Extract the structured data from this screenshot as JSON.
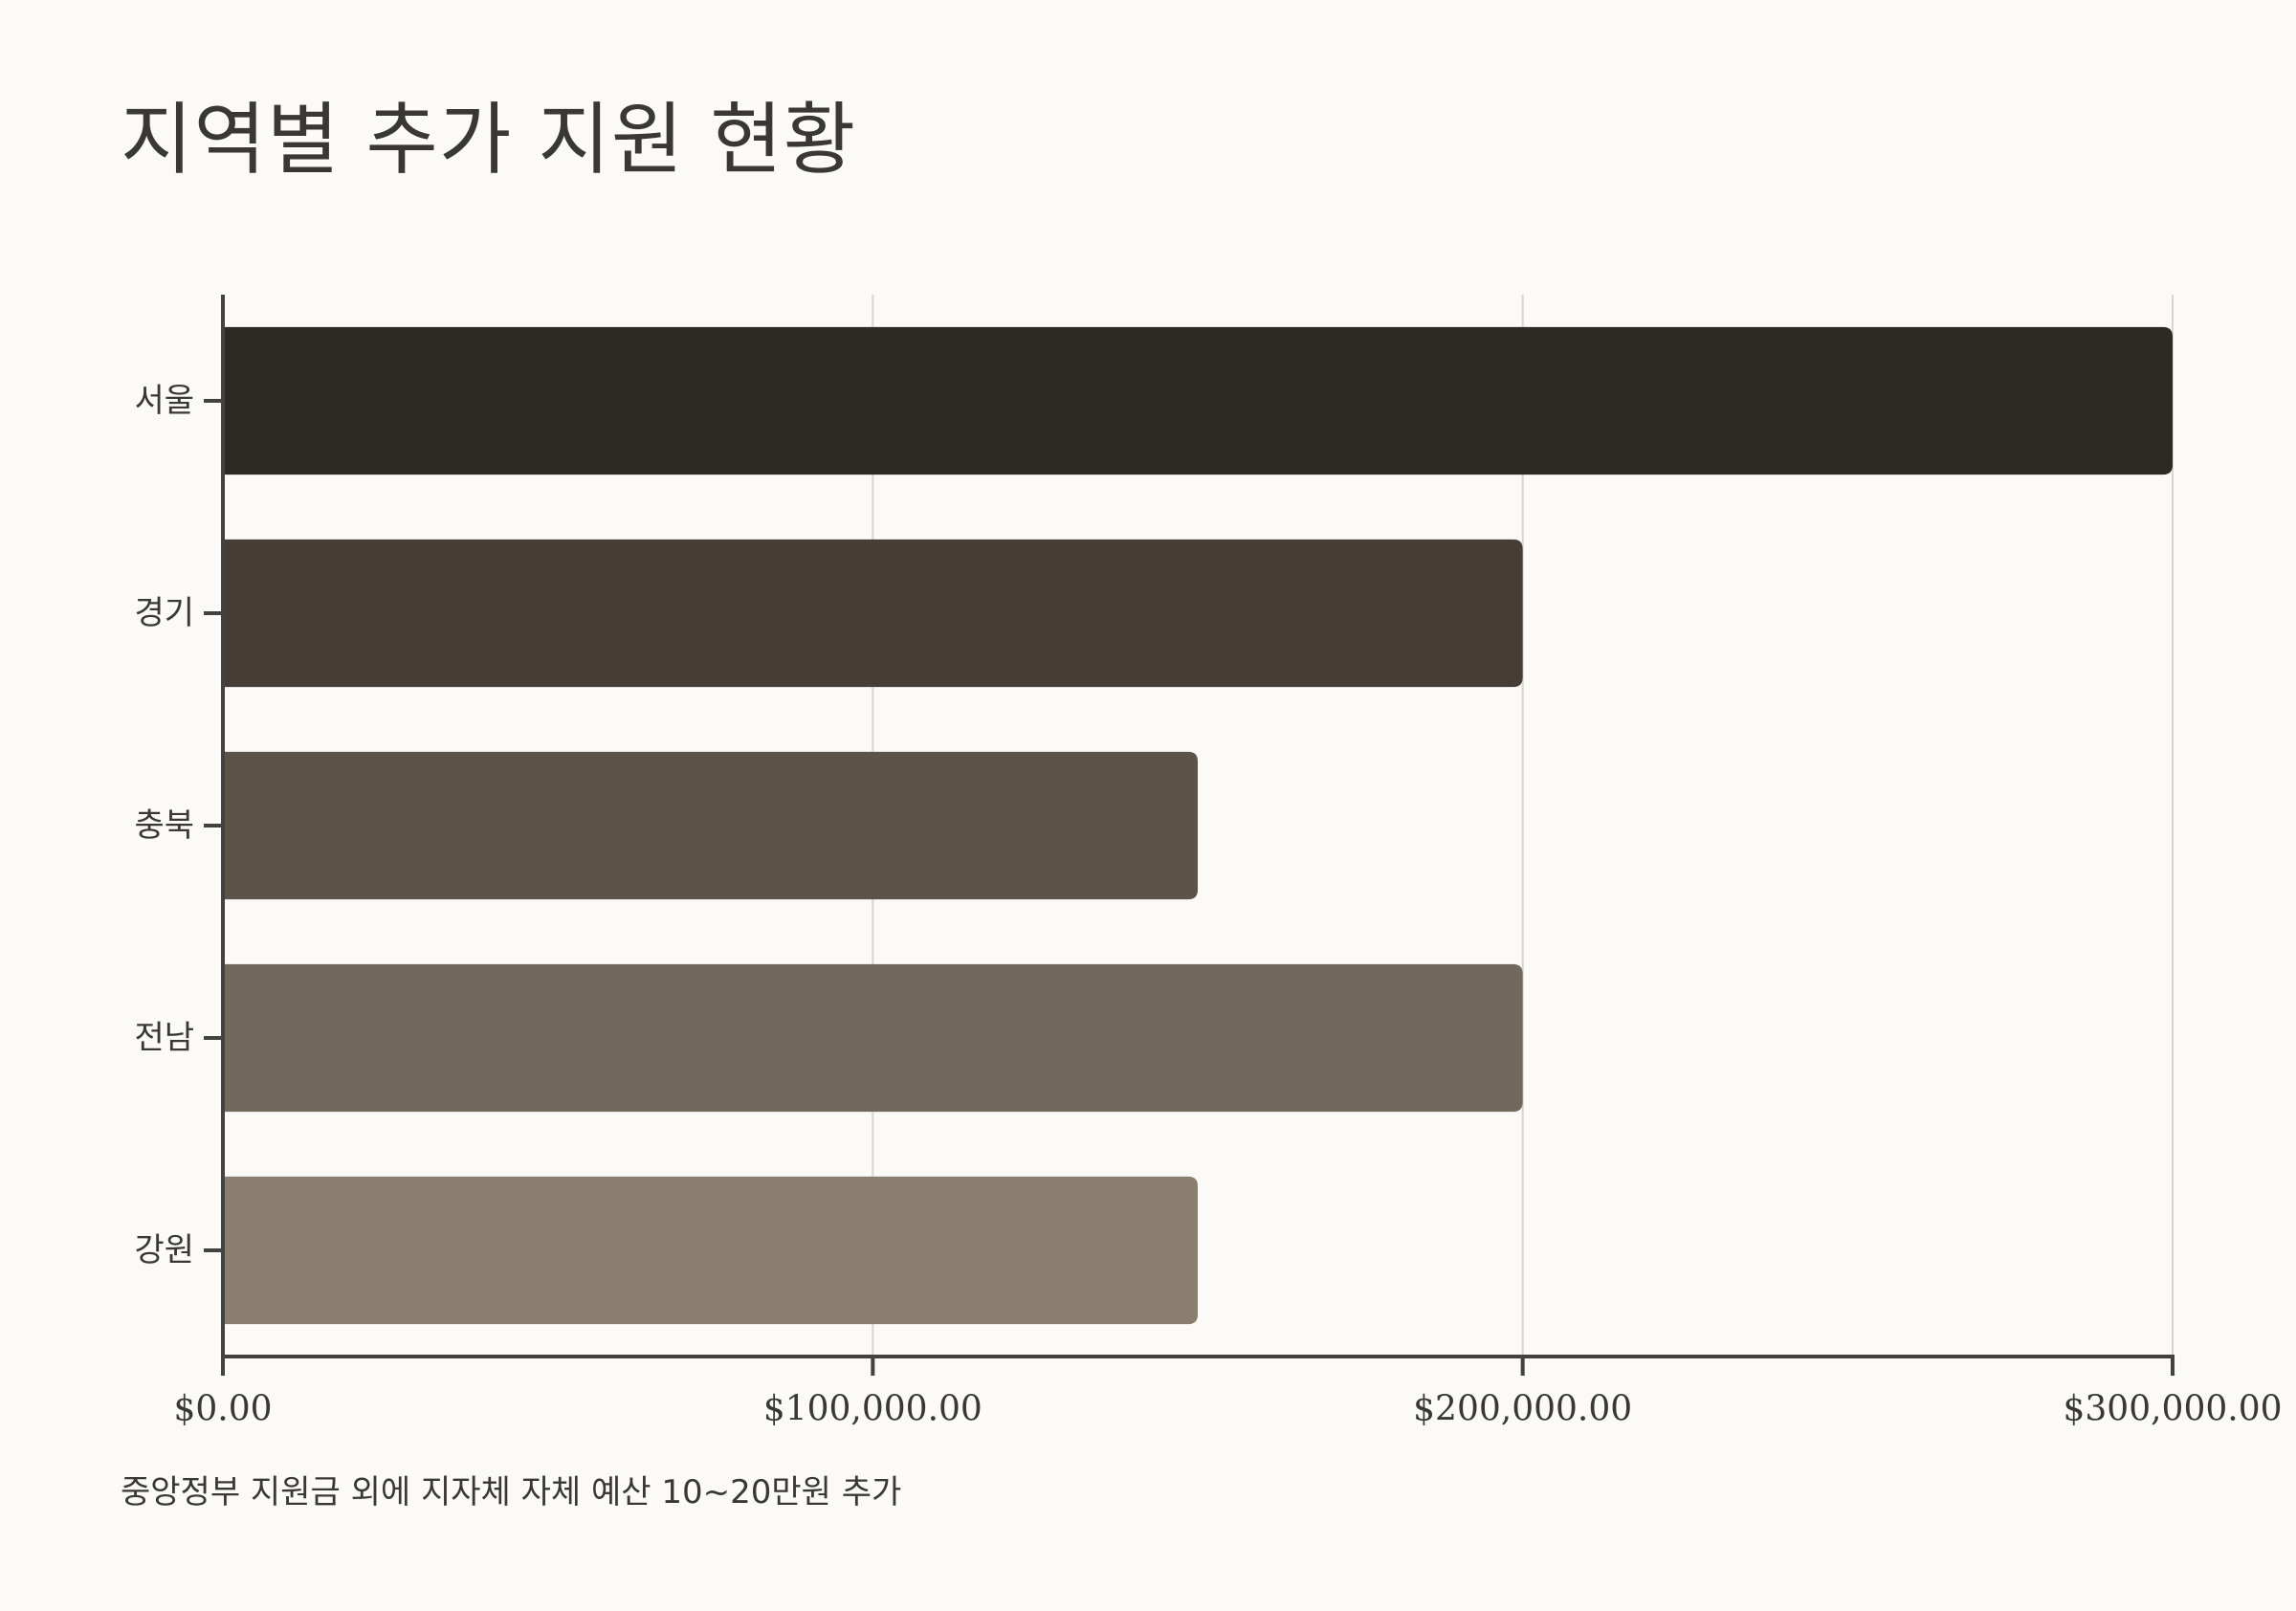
{
  "chart_data": {
    "type": "bar",
    "orientation": "horizontal",
    "title": "지역별 추가 지원 현황",
    "categories": [
      "서울",
      "경기",
      "충북",
      "전남",
      "강원"
    ],
    "values": [
      300000,
      200000,
      150000,
      200000,
      150000
    ],
    "bar_colors": [
      "#2d2a25",
      "#453d36",
      "#5c5449",
      "#72685b",
      "#8a7f6e"
    ],
    "xlim": [
      0,
      300000
    ],
    "x_ticks": [
      0,
      100000,
      200000,
      300000
    ],
    "x_tick_labels": [
      "$0.00",
      "$100,000.00",
      "$200,000.00",
      "$300,000.00"
    ],
    "grid": "vertical",
    "note": "중앙정부 지원금 외에 지자체 자체 예산 10~20만원 추가"
  }
}
